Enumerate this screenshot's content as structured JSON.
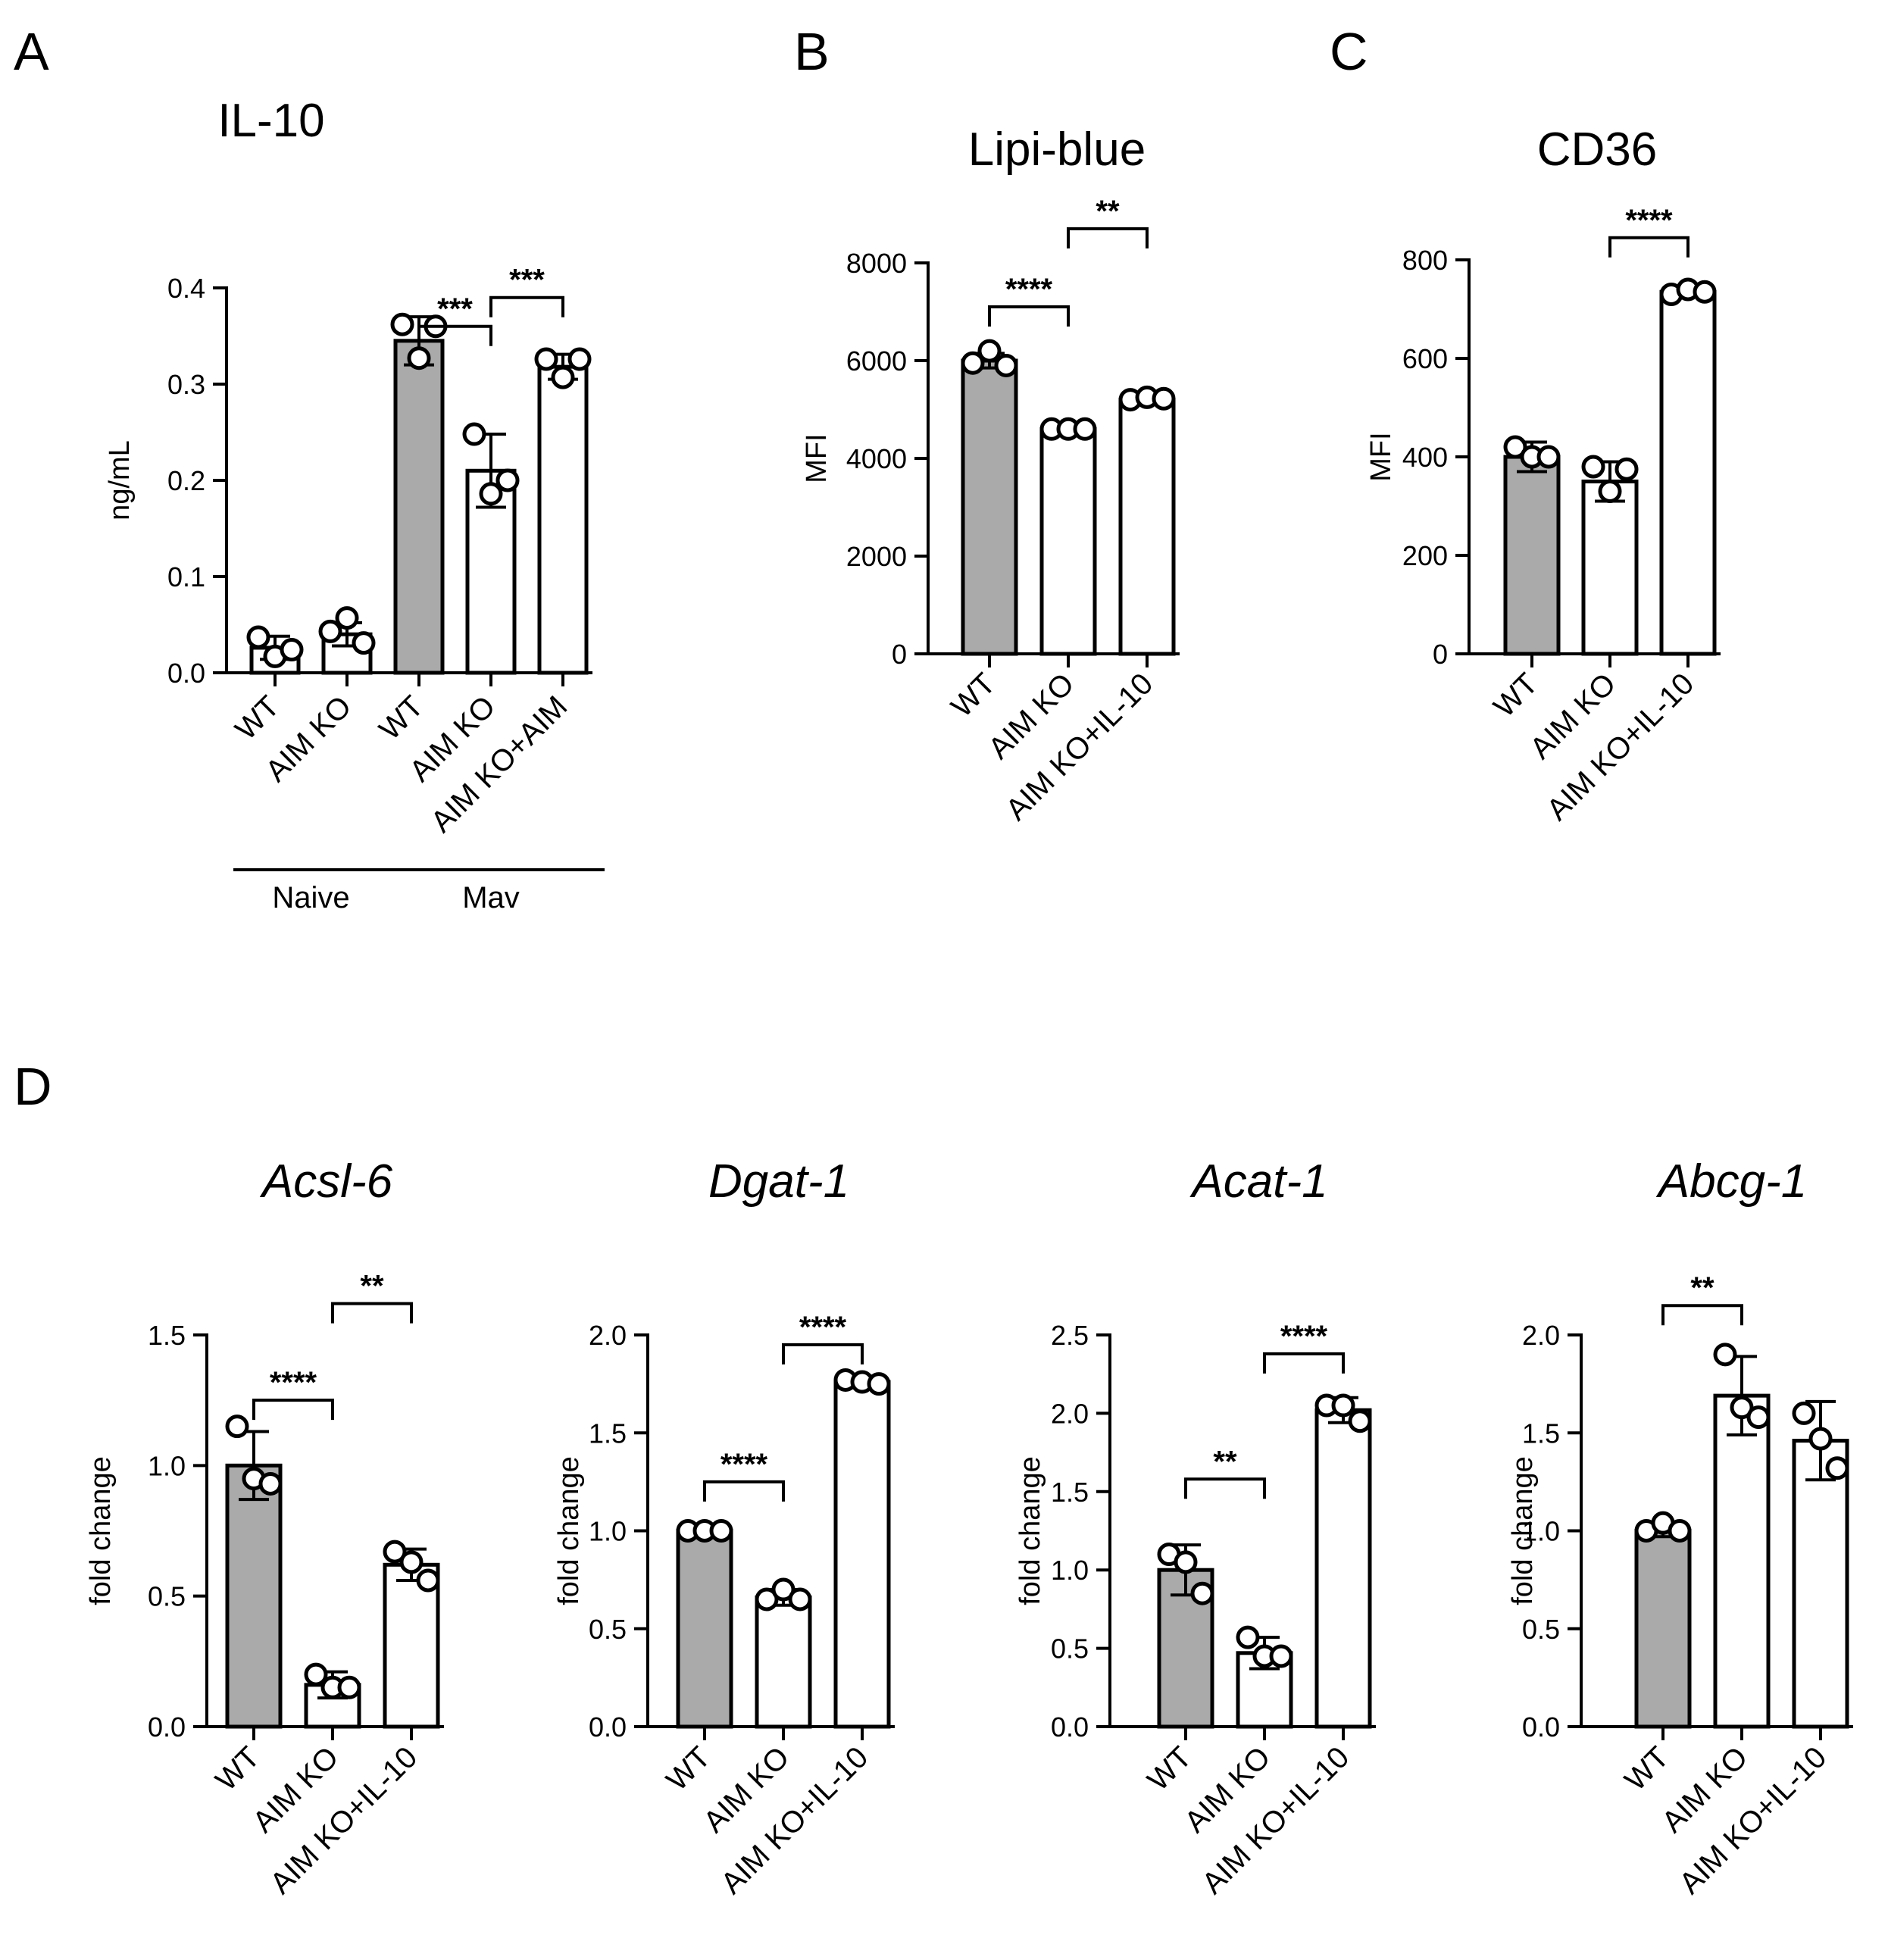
{
  "colors": {
    "wt_bar": "#aaaaaa",
    "ko_bar": "#ffffff",
    "stroke": "#000000"
  },
  "chart_data": [
    {
      "id": "A",
      "panel": "A",
      "type": "bar",
      "title": "IL-10",
      "title_italic": false,
      "ylabel": "ng/mL",
      "ylim": [
        0,
        0.4
      ],
      "yticks": [
        "0.0",
        "0.1",
        "0.2",
        "0.3",
        "0.4"
      ],
      "categories": [
        "WT",
        "AIM KO",
        "WT",
        "AIM KO",
        "AIM KO+AIM"
      ],
      "bar_colors": [
        "white",
        "white",
        "gray",
        "white",
        "white"
      ],
      "values": [
        0.026,
        0.04,
        0.345,
        0.21,
        0.318
      ],
      "errors": [
        0.012,
        0.012,
        0.025,
        0.038,
        0.013
      ],
      "points": [
        [
          0.037,
          0.017,
          0.024
        ],
        [
          0.043,
          0.057,
          0.031
        ],
        [
          0.362,
          0.327,
          0.36
        ],
        [
          0.248,
          0.186,
          0.2
        ],
        [
          0.326,
          0.307,
          0.326
        ]
      ],
      "groups": [
        {
          "label": "Naive",
          "from": 0,
          "to": 1
        },
        {
          "label": "Mav",
          "from": 2,
          "to": 4
        }
      ],
      "significance": [
        {
          "from": 2,
          "to": 3,
          "label": "***",
          "level": 0.36
        },
        {
          "from": 3,
          "to": 4,
          "label": "***",
          "level": 0.39
        }
      ]
    },
    {
      "id": "B",
      "panel": "B",
      "type": "bar",
      "title": "Lipi-blue",
      "title_italic": false,
      "ylabel": "MFI",
      "ylim": [
        0,
        8000
      ],
      "yticks": [
        "0",
        "2000",
        "4000",
        "6000",
        "8000"
      ],
      "categories": [
        "WT",
        "AIM KO",
        "AIM KO+IL-10"
      ],
      "bar_colors": [
        "gray",
        "white",
        "white"
      ],
      "values": [
        6000,
        4600,
        5200
      ],
      "errors": [
        150,
        50,
        60
      ],
      "points": [
        [
          5950,
          6200,
          5900
        ],
        [
          4600,
          4600,
          4600
        ],
        [
          5200,
          5250,
          5220
        ]
      ],
      "groups": [],
      "significance": [
        {
          "from": 0,
          "to": 1,
          "label": "****",
          "level": 7100
        },
        {
          "from": 1,
          "to": 2,
          "label": "**",
          "level": 8700
        }
      ]
    },
    {
      "id": "C",
      "panel": "C",
      "type": "bar",
      "title": "CD36",
      "title_italic": false,
      "ylabel": "MFI",
      "ylim": [
        0,
        800
      ],
      "yticks": [
        "0",
        "200",
        "400",
        "600",
        "800"
      ],
      "categories": [
        "WT",
        "AIM KO",
        "AIM KO+IL-10"
      ],
      "bar_colors": [
        "gray",
        "white",
        "white"
      ],
      "values": [
        400,
        350,
        735
      ],
      "errors": [
        30,
        40,
        10
      ],
      "points": [
        [
          420,
          400,
          400
        ],
        [
          380,
          330,
          375
        ],
        [
          730,
          740,
          735
        ]
      ],
      "groups": [],
      "significance": [
        {
          "from": 1,
          "to": 2,
          "label": "****",
          "level": 845
        }
      ]
    },
    {
      "id": "D1",
      "panel": "D",
      "type": "bar",
      "title": "Acsl-6",
      "title_italic": true,
      "ylabel": "fold change",
      "ylim": [
        0,
        1.5
      ],
      "yticks": [
        "0.0",
        "0.5",
        "1.0",
        "1.5"
      ],
      "categories": [
        "WT",
        "AIM KO",
        "AIM KO+IL-10"
      ],
      "bar_colors": [
        "gray",
        "white",
        "white"
      ],
      "values": [
        1.0,
        0.16,
        0.62
      ],
      "errors": [
        0.13,
        0.05,
        0.06
      ],
      "points": [
        [
          1.15,
          0.95,
          0.93
        ],
        [
          0.2,
          0.15,
          0.15
        ],
        [
          0.67,
          0.63,
          0.56
        ]
      ],
      "groups": [],
      "significance": [
        {
          "from": 0,
          "to": 1,
          "label": "****",
          "level": 1.25
        },
        {
          "from": 1,
          "to": 2,
          "label": "**",
          "level": 1.62
        }
      ]
    },
    {
      "id": "D2",
      "panel": "D",
      "type": "bar",
      "title": "Dgat-1",
      "title_italic": true,
      "ylabel": "fold change",
      "ylim": [
        0,
        2.0
      ],
      "yticks": [
        "0.0",
        "0.5",
        "1.0",
        "1.5",
        "2.0"
      ],
      "categories": [
        "WT",
        "AIM KO",
        "AIM KO+IL-10"
      ],
      "bar_colors": [
        "gray",
        "white",
        "white"
      ],
      "values": [
        1.0,
        0.66,
        1.76
      ],
      "errors": [
        0.02,
        0.04,
        0.03
      ],
      "points": [
        [
          1.0,
          1.0,
          1.0
        ],
        [
          0.65,
          0.7,
          0.65
        ],
        [
          1.77,
          1.76,
          1.75
        ]
      ],
      "groups": [],
      "significance": [
        {
          "from": 0,
          "to": 1,
          "label": "****",
          "level": 1.25
        },
        {
          "from": 1,
          "to": 2,
          "label": "****",
          "level": 1.95
        }
      ]
    },
    {
      "id": "D3",
      "panel": "D",
      "type": "bar",
      "title": "Acat-1",
      "title_italic": true,
      "ylabel": "fold change",
      "ylim": [
        0,
        2.5
      ],
      "yticks": [
        "0.0",
        "0.5",
        "1.0",
        "1.5",
        "2.0",
        "2.5"
      ],
      "categories": [
        "WT",
        "AIM KO",
        "AIM KO+IL-10"
      ],
      "bar_colors": [
        "gray",
        "white",
        "white"
      ],
      "values": [
        1.0,
        0.47,
        2.02
      ],
      "errors": [
        0.16,
        0.1,
        0.08
      ],
      "points": [
        [
          1.1,
          1.05,
          0.85
        ],
        [
          0.57,
          0.45,
          0.45
        ],
        [
          2.05,
          2.05,
          1.95
        ]
      ],
      "groups": [],
      "significance": [
        {
          "from": 0,
          "to": 1,
          "label": "**",
          "level": 1.58
        },
        {
          "from": 1,
          "to": 2,
          "label": "****",
          "level": 2.38
        }
      ]
    },
    {
      "id": "D4",
      "panel": "D",
      "type": "bar",
      "title": "Abcg-1",
      "title_italic": true,
      "ylabel": "fold change",
      "ylim": [
        0,
        2.0
      ],
      "yticks": [
        "0.0",
        "0.5",
        "1.0",
        "1.5",
        "2.0"
      ],
      "categories": [
        "WT",
        "AIM KO",
        "AIM KO+IL-10"
      ],
      "bar_colors": [
        "gray",
        "white",
        "white"
      ],
      "values": [
        1.0,
        1.69,
        1.46
      ],
      "errors": [
        0.03,
        0.2,
        0.2
      ],
      "points": [
        [
          1.0,
          1.04,
          1.0
        ],
        [
          1.9,
          1.63,
          1.58
        ],
        [
          1.6,
          1.47,
          1.32
        ]
      ],
      "groups": [],
      "significance": [
        {
          "from": 0,
          "to": 1,
          "label": "**",
          "level": 2.15
        }
      ]
    }
  ]
}
